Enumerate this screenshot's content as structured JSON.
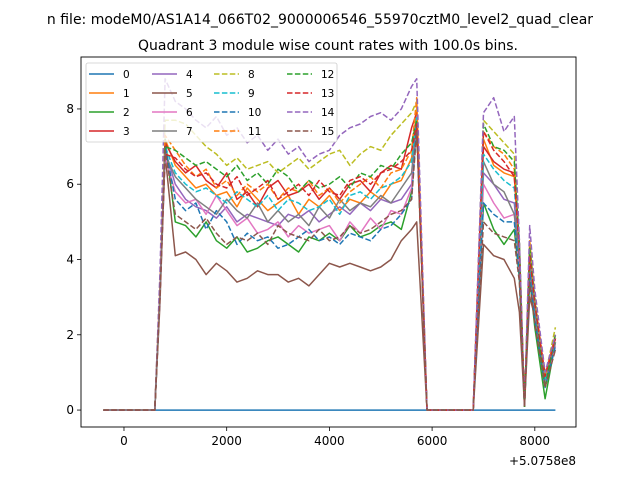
{
  "chart_data": {
    "type": "line",
    "suptitle": "n file: modeM0/AS1A14_066T02_9000006546_55970cztM0_level2_quad_clear",
    "title": "Quadrant 3 module wise count rates with 100.0s bins.",
    "xlabel": "",
    "ylabel": "",
    "x_offset_label": "+5.0758e8",
    "xlim": [
      -837,
      8802
    ],
    "ylim": [
      -0.45,
      9.38
    ],
    "xticks": [
      0,
      2000,
      4000,
      6000,
      8000
    ],
    "xtick_labels": [
      "0",
      "2000",
      "4000",
      "6000",
      "8000"
    ],
    "yticks": [
      0,
      2,
      4,
      6,
      8
    ],
    "ytick_labels": [
      "0",
      "2",
      "4",
      "6",
      "8"
    ],
    "grid": false,
    "legend_position": "top-left",
    "x": [
      -400,
      600,
      700,
      800,
      1000,
      1200,
      1400,
      1600,
      1800,
      2000,
      2200,
      2400,
      2600,
      2800,
      3000,
      3200,
      3400,
      3600,
      3800,
      4000,
      4200,
      4400,
      4600,
      4800,
      5000,
      5200,
      5400,
      5600,
      5700,
      5900,
      6800,
      7000,
      7200,
      7400,
      7600,
      7700,
      7800,
      7900,
      8000,
      8200,
      8400
    ],
    "series": [
      {
        "name": "0",
        "color": "#1f77b4",
        "dashed": false,
        "values": [
          0,
          0,
          0,
          0,
          0,
          0,
          0,
          0,
          0,
          0,
          0,
          0,
          0,
          0,
          0,
          0,
          0,
          0,
          0,
          0,
          0,
          0,
          0,
          0,
          0,
          0,
          0,
          0,
          0,
          0,
          0,
          0,
          0,
          0,
          0,
          0,
          0,
          0,
          0,
          0,
          0
        ]
      },
      {
        "name": "1",
        "color": "#ff7f0e",
        "dashed": false,
        "values": [
          0,
          0,
          3.2,
          7.2,
          6.5,
          6.2,
          5.9,
          6.0,
          5.7,
          5.8,
          5.4,
          5.9,
          5.6,
          5.3,
          5.5,
          5.7,
          5.2,
          5.6,
          5.4,
          5.7,
          5.3,
          5.6,
          5.5,
          5.8,
          5.6,
          6.0,
          6.1,
          6.7,
          8.0,
          0,
          0,
          7.2,
          6.5,
          6.3,
          6.2,
          4.2,
          0.1,
          4.2,
          2.8,
          0.8,
          1.9
        ]
      },
      {
        "name": "2",
        "color": "#2ca02c",
        "dashed": false,
        "values": [
          0,
          0,
          3.0,
          7.2,
          5.0,
          4.9,
          4.6,
          5.0,
          4.5,
          4.3,
          4.6,
          4.2,
          4.3,
          4.5,
          4.6,
          4.4,
          4.2,
          4.6,
          4.5,
          4.7,
          4.5,
          4.9,
          4.6,
          4.7,
          4.9,
          5.0,
          4.8,
          5.8,
          7.5,
          0,
          0,
          5.5,
          4.8,
          4.4,
          4.8,
          3.5,
          0.1,
          3.5,
          2.2,
          0.3,
          1.8
        ]
      },
      {
        "name": "3",
        "color": "#d62728",
        "dashed": false,
        "values": [
          0,
          0,
          3.1,
          7.1,
          6.6,
          6.3,
          6.5,
          6.1,
          5.9,
          6.3,
          5.6,
          5.8,
          5.4,
          5.9,
          6.1,
          5.7,
          5.8,
          6.0,
          5.6,
          5.9,
          5.6,
          6.0,
          6.1,
          5.8,
          6.3,
          6.5,
          6.4,
          7.5,
          7.9,
          0,
          0,
          7.0,
          6.6,
          6.4,
          6.3,
          4.2,
          0.1,
          4.1,
          2.8,
          0.9,
          1.9
        ]
      },
      {
        "name": "4",
        "color": "#9467bd",
        "dashed": false,
        "values": [
          0,
          0,
          3.0,
          6.9,
          6.0,
          5.6,
          5.4,
          5.3,
          5.1,
          5.4,
          5.0,
          5.2,
          5.1,
          5.0,
          4.9,
          5.2,
          5.1,
          5.3,
          5.0,
          5.2,
          5.4,
          5.2,
          5.5,
          5.3,
          5.6,
          5.5,
          5.6,
          6.0,
          7.8,
          0,
          0,
          6.3,
          6.0,
          5.6,
          5.5,
          4.0,
          0.1,
          4.0,
          2.6,
          0.8,
          1.8
        ]
      },
      {
        "name": "5",
        "color": "#8c564b",
        "dashed": false,
        "values": [
          0,
          0,
          2.8,
          6.8,
          4.1,
          4.2,
          4.0,
          3.6,
          3.9,
          3.7,
          3.4,
          3.5,
          3.7,
          3.6,
          3.6,
          3.4,
          3.5,
          3.3,
          3.6,
          3.9,
          3.8,
          3.9,
          3.8,
          3.7,
          3.8,
          4.0,
          4.5,
          4.8,
          5.0,
          0,
          0,
          4.4,
          4.1,
          4.0,
          3.5,
          2.6,
          0.1,
          3.0,
          2.5,
          1.0,
          1.6
        ]
      },
      {
        "name": "6",
        "color": "#e377c2",
        "dashed": false,
        "values": [
          0,
          0,
          3.0,
          6.7,
          5.8,
          5.5,
          5.6,
          5.2,
          5.7,
          5.3,
          4.9,
          5.1,
          4.7,
          4.8,
          5.0,
          4.6,
          4.9,
          4.7,
          4.8,
          4.9,
          4.5,
          5.0,
          4.7,
          5.1,
          4.8,
          5.3,
          5.2,
          5.9,
          7.6,
          0,
          0,
          6.0,
          5.5,
          5.1,
          5.2,
          3.7,
          0.1,
          3.8,
          2.5,
          0.7,
          1.7
        ]
      },
      {
        "name": "7",
        "color": "#7f7f7f",
        "dashed": false,
        "values": [
          0,
          0,
          3.0,
          6.8,
          6.2,
          5.9,
          5.6,
          5.4,
          5.2,
          5.6,
          5.3,
          5.1,
          5.5,
          5.0,
          5.3,
          5.0,
          5.2,
          4.9,
          5.4,
          5.1,
          5.6,
          5.3,
          5.5,
          5.4,
          5.7,
          5.5,
          5.9,
          6.3,
          7.7,
          0,
          0,
          6.6,
          6.0,
          5.8,
          5.2,
          4.0,
          0.1,
          3.9,
          2.6,
          0.8,
          1.8
        ]
      },
      {
        "name": "8",
        "color": "#bcbd22",
        "dashed": true,
        "values": [
          0,
          0,
          3.4,
          7.7,
          7.7,
          7.6,
          7.3,
          7.0,
          6.8,
          6.5,
          6.7,
          6.4,
          6.5,
          6.6,
          6.3,
          6.5,
          6.7,
          6.4,
          6.6,
          6.8,
          6.9,
          6.5,
          6.8,
          7.0,
          6.9,
          7.3,
          7.6,
          7.9,
          8.2,
          0,
          0,
          7.7,
          7.4,
          7.1,
          6.8,
          4.5,
          0.1,
          4.5,
          3.0,
          0.9,
          2.2
        ]
      },
      {
        "name": "9",
        "color": "#17becf",
        "dashed": true,
        "values": [
          0,
          0,
          3.1,
          7.0,
          6.3,
          6.0,
          5.8,
          5.9,
          5.7,
          5.5,
          5.8,
          5.6,
          5.4,
          5.7,
          5.3,
          5.6,
          5.5,
          5.3,
          5.4,
          5.6,
          5.2,
          5.7,
          5.8,
          5.6,
          5.9,
          6.0,
          6.2,
          6.6,
          7.8,
          0,
          0,
          6.8,
          6.4,
          6.1,
          5.9,
          4.1,
          0.1,
          4.0,
          2.7,
          0.8,
          1.9
        ]
      },
      {
        "name": "10",
        "color": "#1f77b4",
        "dashed": true,
        "values": [
          0,
          0,
          3.0,
          7.0,
          5.6,
          5.3,
          5.5,
          4.8,
          5.3,
          5.0,
          4.4,
          4.7,
          4.5,
          4.6,
          4.3,
          4.4,
          4.6,
          4.8,
          4.5,
          4.6,
          4.4,
          4.7,
          4.6,
          4.5,
          4.8,
          4.9,
          5.2,
          5.6,
          7.6,
          0,
          0,
          5.5,
          5.2,
          5.0,
          5.0,
          3.6,
          0.1,
          3.6,
          2.4,
          0.6,
          1.7
        ]
      },
      {
        "name": "11",
        "color": "#ff7f0e",
        "dashed": true,
        "values": [
          0,
          0,
          3.2,
          7.3,
          6.9,
          6.5,
          6.2,
          6.4,
          5.9,
          6.1,
          5.7,
          6.0,
          5.8,
          6.0,
          5.6,
          5.9,
          5.8,
          6.1,
          5.7,
          5.9,
          5.5,
          5.8,
          6.0,
          6.2,
          5.9,
          6.3,
          6.4,
          6.9,
          8.3,
          0,
          0,
          7.4,
          7.0,
          6.8,
          6.4,
          4.3,
          0.1,
          4.5,
          2.9,
          0.9,
          2.0
        ]
      },
      {
        "name": "12",
        "color": "#2ca02c",
        "dashed": true,
        "values": [
          0,
          0,
          3.1,
          7.0,
          6.9,
          6.7,
          6.5,
          6.6,
          6.4,
          6.2,
          6.5,
          6.1,
          6.3,
          6.0,
          6.4,
          6.2,
          5.8,
          6.1,
          5.9,
          6.0,
          6.2,
          5.9,
          6.3,
          6.2,
          6.5,
          6.4,
          6.8,
          7.1,
          7.7,
          0,
          0,
          7.6,
          7.0,
          6.9,
          6.6,
          4.4,
          0.1,
          4.3,
          2.9,
          0.6,
          2.0
        ]
      },
      {
        "name": "13",
        "color": "#d62728",
        "dashed": true,
        "values": [
          0,
          0,
          3.0,
          6.8,
          6.7,
          6.4,
          6.2,
          6.3,
          6.0,
          5.9,
          6.2,
          5.7,
          5.9,
          6.1,
          5.6,
          5.8,
          6.0,
          5.7,
          6.1,
          5.8,
          5.7,
          6.1,
          6.2,
          6.0,
          6.3,
          6.4,
          6.6,
          6.9,
          7.6,
          0,
          0,
          7.4,
          6.9,
          6.6,
          6.2,
          4.2,
          0.1,
          4.1,
          2.8,
          0.9,
          1.9
        ]
      },
      {
        "name": "14",
        "color": "#9467bd",
        "dashed": true,
        "values": [
          0,
          0,
          3.6,
          8.8,
          8.2,
          8.0,
          7.7,
          7.5,
          7.8,
          7.3,
          7.5,
          7.1,
          7.3,
          6.9,
          7.2,
          6.8,
          7.0,
          6.6,
          6.8,
          6.9,
          7.3,
          7.5,
          7.6,
          7.8,
          7.9,
          7.7,
          8.0,
          8.6,
          8.8,
          0,
          0,
          7.9,
          8.3,
          7.4,
          7.8,
          4.5,
          0.1,
          4.9,
          3.2,
          1.0,
          2.0
        ]
      },
      {
        "name": "15",
        "color": "#8c564b",
        "dashed": true,
        "values": [
          0,
          0,
          3.0,
          6.9,
          5.2,
          5.0,
          4.8,
          5.1,
          4.7,
          4.4,
          4.6,
          4.5,
          4.7,
          4.4,
          4.9,
          4.7,
          4.6,
          4.5,
          4.8,
          4.5,
          4.6,
          4.9,
          4.7,
          4.8,
          5.0,
          5.2,
          5.3,
          5.6,
          7.4,
          0,
          0,
          5.0,
          4.7,
          4.6,
          4.5,
          3.4,
          0.1,
          3.4,
          2.3,
          0.6,
          1.6
        ]
      }
    ]
  }
}
